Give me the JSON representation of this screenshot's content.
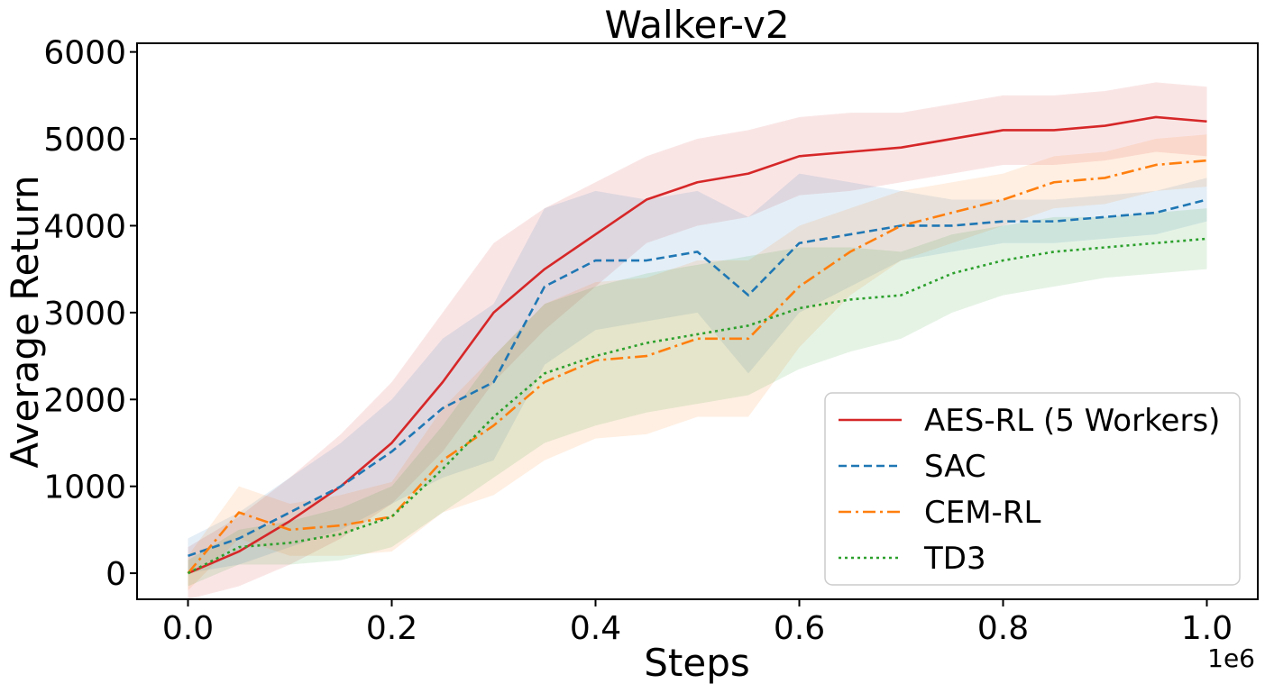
{
  "chart_data": {
    "type": "line",
    "title": "Walker-v2",
    "xlabel": "Steps",
    "ylabel": "Average Return",
    "x_offset_label": "1e6",
    "xlim": [
      -0.05,
      1.05
    ],
    "ylim": [
      -300,
      6100
    ],
    "xticks": [
      0.0,
      0.2,
      0.4,
      0.6,
      0.8,
      1.0
    ],
    "xtick_labels": [
      "0.0",
      "0.2",
      "0.4",
      "0.6",
      "0.8",
      "1.0"
    ],
    "yticks": [
      0,
      1000,
      2000,
      3000,
      4000,
      5000,
      6000
    ],
    "ytick_labels": [
      "0",
      "1000",
      "2000",
      "3000",
      "4000",
      "5000",
      "6000"
    ],
    "legend_position": "lower-right",
    "series": [
      {
        "name": "AES-RL (5 Workers)",
        "color": "#d62728",
        "style": "solid",
        "x": [
          0.0,
          0.05,
          0.1,
          0.15,
          0.2,
          0.25,
          0.3,
          0.35,
          0.4,
          0.45,
          0.5,
          0.55,
          0.6,
          0.65,
          0.7,
          0.75,
          0.8,
          0.85,
          0.9,
          0.95,
          1.0
        ],
        "y": [
          0,
          250,
          600,
          1000,
          1500,
          2200,
          3000,
          3500,
          3900,
          4300,
          4500,
          4600,
          4800,
          4850,
          4900,
          5000,
          5100,
          5100,
          5150,
          5250,
          5200
        ],
        "band": [
          300,
          400,
          500,
          600,
          700,
          800,
          800,
          700,
          600,
          500,
          500,
          500,
          450,
          450,
          400,
          400,
          400,
          400,
          400,
          400,
          400
        ]
      },
      {
        "name": "SAC",
        "color": "#1f77b4",
        "style": "dashed",
        "x": [
          0.0,
          0.05,
          0.1,
          0.15,
          0.2,
          0.25,
          0.3,
          0.35,
          0.4,
          0.45,
          0.5,
          0.55,
          0.6,
          0.65,
          0.7,
          0.75,
          0.8,
          0.85,
          0.9,
          0.95,
          1.0
        ],
        "y": [
          200,
          400,
          700,
          1000,
          1400,
          1900,
          2200,
          3300,
          3600,
          3600,
          3700,
          3200,
          3800,
          3900,
          4000,
          4000,
          4050,
          4050,
          4100,
          4150,
          4300
        ],
        "band": [
          200,
          300,
          400,
          500,
          600,
          800,
          900,
          900,
          800,
          700,
          700,
          900,
          800,
          600,
          400,
          300,
          250,
          250,
          250,
          250,
          250
        ]
      },
      {
        "name": "CEM-RL",
        "color": "#ff7f0e",
        "style": "dashdot",
        "x": [
          0.0,
          0.05,
          0.1,
          0.15,
          0.2,
          0.25,
          0.3,
          0.35,
          0.4,
          0.45,
          0.5,
          0.55,
          0.6,
          0.65,
          0.7,
          0.75,
          0.8,
          0.85,
          0.9,
          0.95,
          1.0
        ],
        "y": [
          0,
          700,
          500,
          550,
          650,
          1300,
          1700,
          2200,
          2450,
          2500,
          2700,
          2700,
          3300,
          3700,
          4000,
          4150,
          4300,
          4500,
          4550,
          4700,
          4750
        ],
        "band": [
          200,
          300,
          300,
          350,
          400,
          600,
          800,
          900,
          900,
          900,
          900,
          900,
          700,
          500,
          400,
          350,
          300,
          300,
          300,
          300,
          300
        ]
      },
      {
        "name": "TD3",
        "color": "#2ca02c",
        "style": "dotted",
        "x": [
          0.0,
          0.05,
          0.1,
          0.15,
          0.2,
          0.25,
          0.3,
          0.35,
          0.4,
          0.45,
          0.5,
          0.55,
          0.6,
          0.65,
          0.7,
          0.75,
          0.8,
          0.85,
          0.9,
          0.95,
          1.0
        ],
        "y": [
          0,
          300,
          350,
          450,
          650,
          1200,
          1800,
          2300,
          2500,
          2650,
          2750,
          2850,
          3050,
          3150,
          3200,
          3450,
          3600,
          3700,
          3750,
          3800,
          3850
        ],
        "band": [
          150,
          200,
          250,
          300,
          350,
          500,
          700,
          800,
          800,
          800,
          800,
          800,
          700,
          600,
          500,
          450,
          400,
          400,
          350,
          350,
          350
        ]
      }
    ]
  }
}
